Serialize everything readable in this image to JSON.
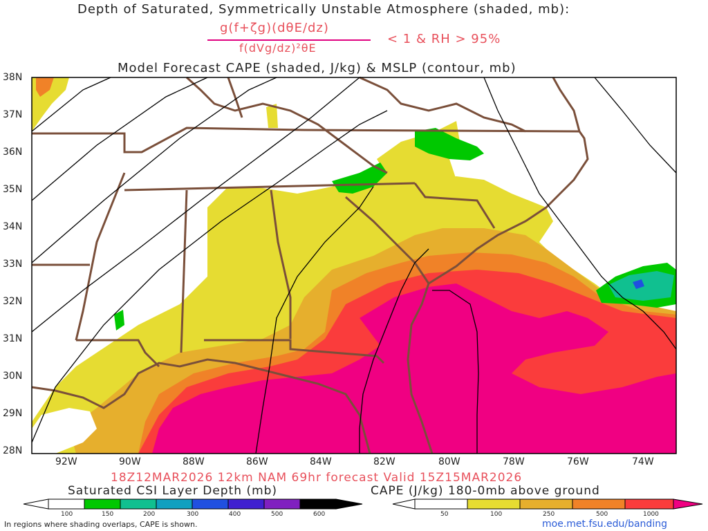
{
  "title": {
    "line1": "Depth of Saturated, Symmetrically Unstable Atmosphere (shaded, mb):",
    "numerator": "g(f+ζg)(dθE/dz)",
    "denominator": "f(dVg/dz)²θE",
    "condition": "< 1 & RH > 95%",
    "line3": "Model Forecast CAPE (shaded, J/kg) & MSLP (contour, mb)"
  },
  "axes": {
    "lat_labels": [
      "38N",
      "37N",
      "36N",
      "35N",
      "34N",
      "33N",
      "32N",
      "31N",
      "30N",
      "29N",
      "28N"
    ],
    "lon_labels": [
      "92W",
      "90W",
      "88W",
      "86W",
      "84W",
      "82W",
      "80W",
      "78W",
      "76W",
      "74W"
    ]
  },
  "footer": {
    "valid": "18Z12MAR2026 12km NAM 69hr forecast Valid 15Z15MAR2026",
    "csi_label": "Saturated CSI Layer Depth (mb)",
    "cape_label": "CAPE (J/kg) 180-0mb above ground",
    "note": "In regions where shading overlaps, CAPE is shown.",
    "credit": "moe.met.fsu.edu/banding"
  },
  "legends": {
    "csi": {
      "ticks": [
        "100",
        "150",
        "200",
        "300",
        "400",
        "500",
        "600"
      ],
      "colors": [
        "#ffffff",
        "#00c800",
        "#10c090",
        "#10a0c0",
        "#2050e0",
        "#4020d0",
        "#8020c0",
        "#000000"
      ]
    },
    "cape": {
      "ticks": [
        "50",
        "100",
        "250",
        "500",
        "1000"
      ],
      "colors": [
        "#ffffff",
        "#e6dc32",
        "#e6af2d",
        "#f08228",
        "#fa3c3c",
        "#f00082"
      ]
    }
  },
  "colors": {
    "cape_50": "#e6dc32",
    "cape_100": "#e6af2d",
    "cape_250": "#f08228",
    "cape_500": "#fa3c3c",
    "cape_1000": "#f00082",
    "csi_green": "#00c800",
    "csi_teal": "#10c090",
    "csi_blue": "#2050e0",
    "borders": "#7a4f3a",
    "isobars": "#000000",
    "title_accent": "#e8505b"
  }
}
